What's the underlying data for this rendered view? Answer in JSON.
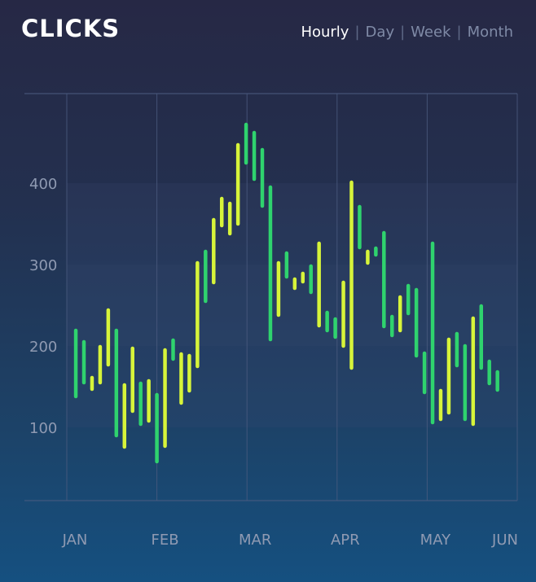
{
  "header": {
    "title": "CLICKS",
    "ranges": [
      "Hourly",
      "Day",
      "Week",
      "Month"
    ],
    "active_range": "Hourly"
  },
  "colors": {
    "green": "#2fd36e",
    "yellow": "#d7f43a",
    "grid": "#4b5b80",
    "band": "#3a4a74"
  },
  "chart_data": {
    "type": "bar",
    "title": "CLICKS",
    "xlabel": "",
    "ylabel": "",
    "x_ticks": [
      "JAN",
      "FEB",
      "MAR",
      "APR",
      "MAY",
      "JUN"
    ],
    "y_ticks": [
      100,
      200,
      300,
      400
    ],
    "ylim": [
      10,
      510
    ],
    "grid": true,
    "bars": [
      {
        "x": 0.1,
        "low": 138,
        "high": 219,
        "color": "green"
      },
      {
        "x": 0.19,
        "low": 155,
        "high": 205,
        "color": "green"
      },
      {
        "x": 0.28,
        "low": 147,
        "high": 161,
        "color": "yellow"
      },
      {
        "x": 0.37,
        "low": 155,
        "high": 199,
        "color": "yellow"
      },
      {
        "x": 0.46,
        "low": 177,
        "high": 244,
        "color": "yellow"
      },
      {
        "x": 0.55,
        "low": 90,
        "high": 219,
        "color": "green"
      },
      {
        "x": 0.64,
        "low": 76,
        "high": 152,
        "color": "yellow"
      },
      {
        "x": 0.73,
        "low": 120,
        "high": 197,
        "color": "yellow"
      },
      {
        "x": 0.82,
        "low": 104,
        "high": 154,
        "color": "green"
      },
      {
        "x": 0.91,
        "low": 108,
        "high": 157,
        "color": "yellow"
      },
      {
        "x": 1.0,
        "low": 58,
        "high": 140,
        "color": "green"
      },
      {
        "x": 1.09,
        "low": 77,
        "high": 195,
        "color": "yellow"
      },
      {
        "x": 1.18,
        "low": 184,
        "high": 207,
        "color": "green"
      },
      {
        "x": 1.27,
        "low": 130,
        "high": 190,
        "color": "yellow"
      },
      {
        "x": 1.36,
        "low": 145,
        "high": 188,
        "color": "yellow"
      },
      {
        "x": 1.45,
        "low": 175,
        "high": 302,
        "color": "yellow"
      },
      {
        "x": 1.54,
        "low": 255,
        "high": 316,
        "color": "green"
      },
      {
        "x": 1.63,
        "low": 278,
        "high": 355,
        "color": "yellow"
      },
      {
        "x": 1.72,
        "low": 348,
        "high": 381,
        "color": "yellow"
      },
      {
        "x": 1.81,
        "low": 338,
        "high": 375,
        "color": "yellow"
      },
      {
        "x": 1.9,
        "low": 350,
        "high": 447,
        "color": "yellow"
      },
      {
        "x": 1.99,
        "low": 425,
        "high": 472,
        "color": "green"
      },
      {
        "x": 2.08,
        "low": 405,
        "high": 462,
        "color": "green"
      },
      {
        "x": 2.17,
        "low": 372,
        "high": 441,
        "color": "green"
      },
      {
        "x": 2.26,
        "low": 208,
        "high": 395,
        "color": "green"
      },
      {
        "x": 2.35,
        "low": 238,
        "high": 302,
        "color": "yellow"
      },
      {
        "x": 2.44,
        "low": 285,
        "high": 314,
        "color": "green"
      },
      {
        "x": 2.53,
        "low": 271,
        "high": 282,
        "color": "yellow"
      },
      {
        "x": 2.62,
        "low": 279,
        "high": 289,
        "color": "yellow"
      },
      {
        "x": 2.71,
        "low": 266,
        "high": 298,
        "color": "green"
      },
      {
        "x": 2.8,
        "low": 225,
        "high": 326,
        "color": "yellow"
      },
      {
        "x": 2.89,
        "low": 219,
        "high": 241,
        "color": "green"
      },
      {
        "x": 2.98,
        "low": 211,
        "high": 233,
        "color": "green"
      },
      {
        "x": 3.07,
        "low": 200,
        "high": 278,
        "color": "yellow"
      },
      {
        "x": 3.16,
        "low": 173,
        "high": 401,
        "color": "yellow"
      },
      {
        "x": 3.25,
        "low": 321,
        "high": 371,
        "color": "green"
      },
      {
        "x": 3.34,
        "low": 302,
        "high": 316,
        "color": "yellow"
      },
      {
        "x": 3.43,
        "low": 312,
        "high": 320,
        "color": "green"
      },
      {
        "x": 3.52,
        "low": 224,
        "high": 339,
        "color": "green"
      },
      {
        "x": 3.61,
        "low": 213,
        "high": 236,
        "color": "green"
      },
      {
        "x": 3.7,
        "low": 219,
        "high": 260,
        "color": "yellow"
      },
      {
        "x": 3.79,
        "low": 240,
        "high": 274,
        "color": "green"
      },
      {
        "x": 3.88,
        "low": 188,
        "high": 269,
        "color": "green"
      },
      {
        "x": 3.97,
        "low": 143,
        "high": 191,
        "color": "green"
      },
      {
        "x": 4.06,
        "low": 106,
        "high": 326,
        "color": "green"
      },
      {
        "x": 4.15,
        "low": 110,
        "high": 145,
        "color": "yellow"
      },
      {
        "x": 4.24,
        "low": 118,
        "high": 208,
        "color": "yellow"
      },
      {
        "x": 4.33,
        "low": 176,
        "high": 215,
        "color": "green"
      },
      {
        "x": 4.42,
        "low": 110,
        "high": 200,
        "color": "green"
      },
      {
        "x": 4.51,
        "low": 104,
        "high": 234,
        "color": "yellow"
      },
      {
        "x": 4.6,
        "low": 173,
        "high": 249,
        "color": "green"
      },
      {
        "x": 4.69,
        "low": 154,
        "high": 181,
        "color": "green"
      },
      {
        "x": 4.78,
        "low": 146,
        "high": 168,
        "color": "green"
      }
    ]
  }
}
